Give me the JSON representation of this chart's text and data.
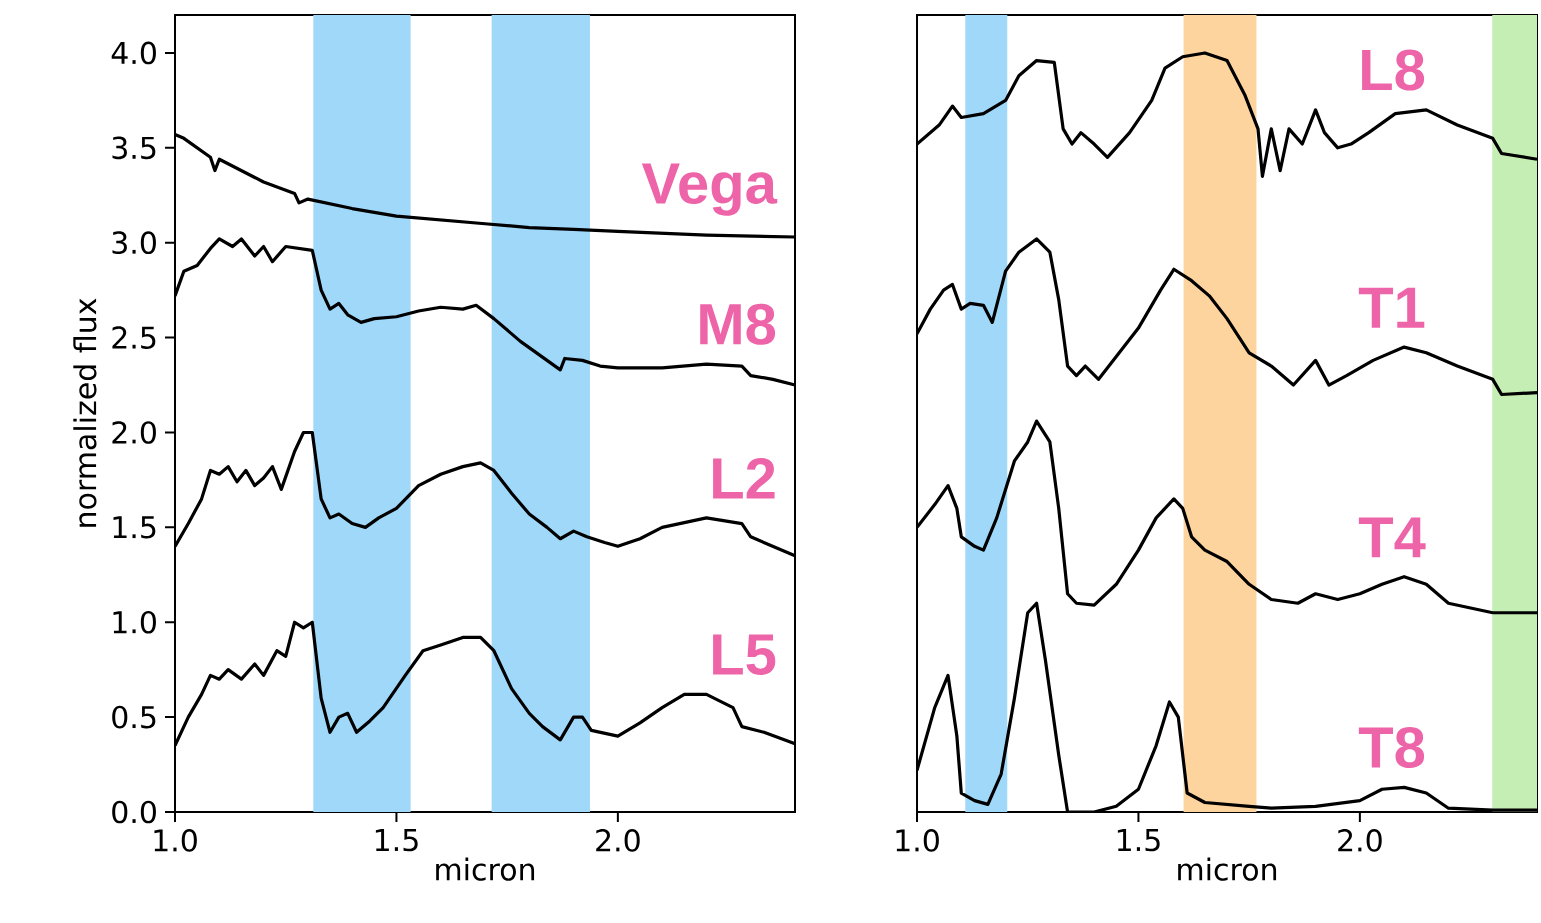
{
  "chart_data": [
    {
      "type": "line",
      "xlabel": "micron",
      "ylabel": "normalized flux",
      "xlim": [
        1.0,
        2.4
      ],
      "ylim": [
        0,
        4.2
      ],
      "xticks": [
        {
          "value": 1.0,
          "label": "1.0"
        },
        {
          "value": 1.5,
          "label": "1.5"
        },
        {
          "value": 2.0,
          "label": "2.0"
        }
      ],
      "yticks": [
        {
          "value": 0,
          "label": "0.0"
        },
        {
          "value": 0.5,
          "label": "0.5"
        },
        {
          "value": 1.0,
          "label": "1.0"
        },
        {
          "value": 1.5,
          "label": "1.5"
        },
        {
          "value": 2.0,
          "label": "2.0"
        },
        {
          "value": 2.5,
          "label": "2.5"
        },
        {
          "value": 3.0,
          "label": "3.0"
        },
        {
          "value": 3.5,
          "label": "3.5"
        },
        {
          "value": 4.0,
          "label": "4.0"
        }
      ],
      "bands": [
        {
          "axis": "x",
          "from": 1.312,
          "to": 1.532,
          "color": "#a0d8fa"
        },
        {
          "axis": "x",
          "from": 1.715,
          "to": 1.937,
          "color": "#a0d8fa"
        }
      ],
      "series": [
        {
          "name": "Vega",
          "color": "#000000",
          "x": [
            1.0,
            1.02,
            1.08,
            1.09,
            1.1,
            1.2,
            1.27,
            1.28,
            1.3,
            1.4,
            1.5,
            1.6,
            1.7,
            1.8,
            1.9,
            2.0,
            2.2,
            2.4
          ],
          "values": [
            3.57,
            3.55,
            3.45,
            3.38,
            3.44,
            3.32,
            3.26,
            3.21,
            3.23,
            3.18,
            3.14,
            3.12,
            3.1,
            3.08,
            3.07,
            3.06,
            3.04,
            3.03
          ]
        },
        {
          "name": "M8",
          "color": "#000000",
          "x": [
            1.0,
            1.02,
            1.05,
            1.08,
            1.1,
            1.13,
            1.15,
            1.18,
            1.2,
            1.22,
            1.25,
            1.28,
            1.31,
            1.33,
            1.35,
            1.37,
            1.39,
            1.42,
            1.45,
            1.5,
            1.55,
            1.6,
            1.65,
            1.68,
            1.72,
            1.78,
            1.84,
            1.87,
            1.88,
            1.92,
            1.96,
            2.0,
            2.1,
            2.2,
            2.28,
            2.3,
            2.35,
            2.4
          ],
          "values": [
            2.72,
            2.85,
            2.88,
            2.97,
            3.02,
            2.98,
            3.02,
            2.93,
            2.98,
            2.9,
            2.98,
            2.97,
            2.96,
            2.75,
            2.65,
            2.68,
            2.62,
            2.58,
            2.6,
            2.61,
            2.64,
            2.66,
            2.65,
            2.67,
            2.6,
            2.48,
            2.38,
            2.33,
            2.39,
            2.38,
            2.35,
            2.34,
            2.34,
            2.36,
            2.35,
            2.3,
            2.28,
            2.25
          ]
        },
        {
          "name": "L2",
          "color": "#000000",
          "x": [
            1.0,
            1.03,
            1.06,
            1.08,
            1.1,
            1.12,
            1.14,
            1.16,
            1.18,
            1.2,
            1.22,
            1.24,
            1.27,
            1.29,
            1.31,
            1.33,
            1.35,
            1.37,
            1.4,
            1.43,
            1.46,
            1.5,
            1.55,
            1.6,
            1.65,
            1.69,
            1.72,
            1.76,
            1.8,
            1.84,
            1.87,
            1.9,
            1.93,
            1.97,
            2.0,
            2.05,
            2.1,
            2.2,
            2.28,
            2.3,
            2.35,
            2.4
          ],
          "values": [
            1.4,
            1.52,
            1.65,
            1.8,
            1.78,
            1.82,
            1.74,
            1.8,
            1.72,
            1.76,
            1.82,
            1.7,
            1.9,
            2.0,
            2.0,
            1.65,
            1.55,
            1.57,
            1.52,
            1.5,
            1.55,
            1.6,
            1.72,
            1.78,
            1.82,
            1.84,
            1.8,
            1.68,
            1.57,
            1.5,
            1.44,
            1.48,
            1.45,
            1.42,
            1.4,
            1.44,
            1.5,
            1.55,
            1.52,
            1.45,
            1.4,
            1.35
          ]
        },
        {
          "name": "L5",
          "color": "#000000",
          "x": [
            1.0,
            1.03,
            1.06,
            1.08,
            1.1,
            1.12,
            1.15,
            1.18,
            1.2,
            1.23,
            1.25,
            1.27,
            1.29,
            1.31,
            1.33,
            1.35,
            1.37,
            1.39,
            1.41,
            1.44,
            1.47,
            1.52,
            1.56,
            1.6,
            1.65,
            1.69,
            1.72,
            1.76,
            1.8,
            1.83,
            1.87,
            1.9,
            1.92,
            1.94,
            2.0,
            2.05,
            2.1,
            2.15,
            2.2,
            2.26,
            2.28,
            2.33,
            2.4
          ],
          "values": [
            0.35,
            0.5,
            0.62,
            0.72,
            0.7,
            0.75,
            0.7,
            0.78,
            0.72,
            0.85,
            0.82,
            1.0,
            0.97,
            1.0,
            0.6,
            0.42,
            0.5,
            0.52,
            0.42,
            0.48,
            0.55,
            0.72,
            0.85,
            0.88,
            0.92,
            0.92,
            0.85,
            0.65,
            0.52,
            0.45,
            0.38,
            0.5,
            0.5,
            0.43,
            0.4,
            0.47,
            0.55,
            0.62,
            0.62,
            0.55,
            0.45,
            0.42,
            0.36
          ]
        }
      ]
    },
    {
      "type": "line",
      "xlabel": "micron",
      "xlim": [
        1.0,
        2.4
      ],
      "ylim": [
        0,
        4.2
      ],
      "tick_labels": "x",
      "xticks": [
        {
          "value": 1.0,
          "label": "1.0"
        },
        {
          "value": 1.5,
          "label": "1.5"
        },
        {
          "value": 2.0,
          "label": "2.0"
        }
      ],
      "bands": [
        {
          "axis": "x",
          "from": 1.109,
          "to": 1.204,
          "color": "#a0d8fa"
        },
        {
          "axis": "x",
          "from": 1.602,
          "to": 1.767,
          "color": "#fdd49e"
        },
        {
          "axis": "x",
          "from": 2.299,
          "to": 2.4,
          "color": "#c4eeb4"
        }
      ],
      "series": [
        {
          "name": "L8",
          "color": "#000000",
          "x": [
            1.0,
            1.05,
            1.08,
            1.1,
            1.15,
            1.2,
            1.23,
            1.27,
            1.31,
            1.33,
            1.35,
            1.37,
            1.4,
            1.43,
            1.48,
            1.53,
            1.56,
            1.6,
            1.65,
            1.7,
            1.74,
            1.77,
            1.78,
            1.8,
            1.82,
            1.84,
            1.87,
            1.9,
            1.92,
            1.95,
            1.98,
            2.02,
            2.08,
            2.15,
            2.22,
            2.3,
            2.32,
            2.4
          ],
          "values": [
            3.52,
            3.62,
            3.72,
            3.66,
            3.68,
            3.75,
            3.88,
            3.96,
            3.95,
            3.6,
            3.52,
            3.58,
            3.52,
            3.45,
            3.58,
            3.75,
            3.92,
            3.98,
            4.0,
            3.96,
            3.78,
            3.6,
            3.35,
            3.6,
            3.38,
            3.6,
            3.52,
            3.7,
            3.58,
            3.5,
            3.52,
            3.58,
            3.68,
            3.7,
            3.62,
            3.55,
            3.47,
            3.44
          ]
        },
        {
          "name": "T1",
          "color": "#000000",
          "x": [
            1.0,
            1.03,
            1.06,
            1.08,
            1.1,
            1.12,
            1.15,
            1.17,
            1.2,
            1.23,
            1.27,
            1.3,
            1.32,
            1.34,
            1.36,
            1.38,
            1.41,
            1.45,
            1.5,
            1.55,
            1.58,
            1.62,
            1.66,
            1.7,
            1.75,
            1.8,
            1.85,
            1.9,
            1.93,
            1.97,
            2.03,
            2.1,
            2.15,
            2.22,
            2.3,
            2.32,
            2.4
          ],
          "values": [
            2.52,
            2.65,
            2.75,
            2.78,
            2.65,
            2.68,
            2.67,
            2.58,
            2.85,
            2.95,
            3.02,
            2.95,
            2.7,
            2.35,
            2.3,
            2.35,
            2.28,
            2.4,
            2.55,
            2.75,
            2.86,
            2.8,
            2.72,
            2.6,
            2.42,
            2.35,
            2.25,
            2.38,
            2.25,
            2.3,
            2.38,
            2.45,
            2.42,
            2.35,
            2.28,
            2.2,
            2.21
          ]
        },
        {
          "name": "T4",
          "color": "#000000",
          "x": [
            1.0,
            1.04,
            1.07,
            1.09,
            1.1,
            1.13,
            1.15,
            1.18,
            1.22,
            1.25,
            1.27,
            1.3,
            1.32,
            1.34,
            1.36,
            1.4,
            1.45,
            1.5,
            1.54,
            1.58,
            1.6,
            1.62,
            1.65,
            1.7,
            1.75,
            1.8,
            1.86,
            1.9,
            1.95,
            2.0,
            2.05,
            2.1,
            2.15,
            2.2,
            2.3,
            2.4
          ],
          "values": [
            1.5,
            1.62,
            1.72,
            1.6,
            1.45,
            1.4,
            1.38,
            1.55,
            1.85,
            1.95,
            2.06,
            1.95,
            1.6,
            1.15,
            1.1,
            1.09,
            1.2,
            1.38,
            1.55,
            1.65,
            1.6,
            1.45,
            1.38,
            1.32,
            1.2,
            1.12,
            1.1,
            1.15,
            1.12,
            1.15,
            1.2,
            1.24,
            1.2,
            1.1,
            1.05,
            1.05
          ]
        },
        {
          "name": "T8",
          "color": "#000000",
          "x": [
            1.0,
            1.04,
            1.07,
            1.09,
            1.1,
            1.13,
            1.16,
            1.19,
            1.22,
            1.25,
            1.27,
            1.29,
            1.32,
            1.34,
            1.4,
            1.45,
            1.5,
            1.54,
            1.57,
            1.59,
            1.61,
            1.65,
            1.7,
            1.75,
            1.8,
            1.9,
            2.0,
            2.05,
            2.1,
            2.15,
            2.2,
            2.3,
            2.4
          ],
          "values": [
            0.22,
            0.55,
            0.72,
            0.4,
            0.1,
            0.06,
            0.04,
            0.2,
            0.6,
            1.05,
            1.1,
            0.8,
            0.3,
            0.0,
            0.0,
            0.03,
            0.12,
            0.35,
            0.58,
            0.5,
            0.1,
            0.05,
            0.04,
            0.03,
            0.02,
            0.03,
            0.06,
            0.12,
            0.13,
            0.1,
            0.02,
            0.01,
            0.01
          ]
        }
      ]
    }
  ]
}
